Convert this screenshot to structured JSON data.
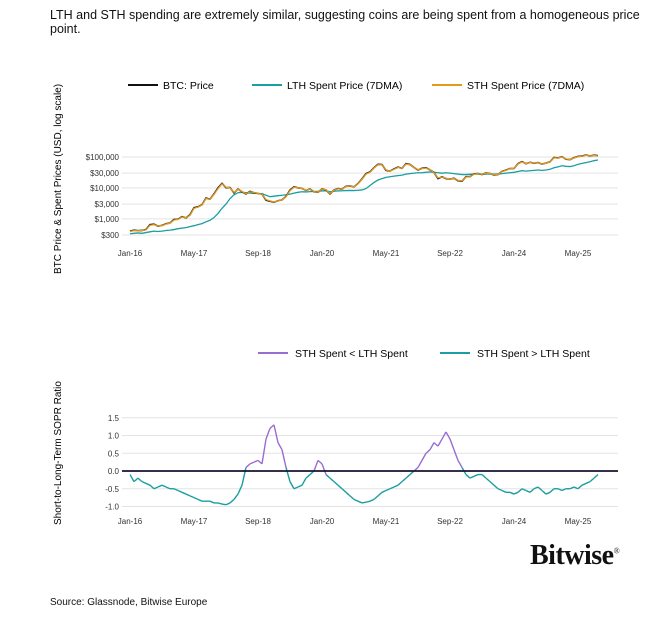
{
  "title": "LTH and STH spending are extremely similar, suggesting coins are being spent from a homogeneous price point.",
  "source": "Source: Glassnode, Bitwise Europe",
  "logo": "Bitwise",
  "colors": {
    "price": "#111111",
    "lth": "#1a9ea0",
    "sth": "#e49a1c",
    "purple": "#9a6bd2",
    "zero": "#1a1030"
  },
  "chart_data": [
    {
      "type": "line",
      "ylabel": "BTC Price & Spent Prices (USD, log scale)",
      "yscale": "log",
      "ylim": [
        250,
        130000
      ],
      "yticks": [
        300,
        1000,
        3000,
        10000,
        30000,
        100000
      ],
      "ytick_labels": [
        "$300",
        "$1,000",
        "$3,000",
        "$10,000",
        "$30,000",
        "$100,000"
      ],
      "xticks": [
        "Jan-16",
        "May-17",
        "Sep-18",
        "Jan-20",
        "May-21",
        "Sep-22",
        "Jan-24",
        "May-25"
      ],
      "grid": true,
      "legend": "top",
      "x_start": "2016-01",
      "x_step": "monthly",
      "series": [
        {
          "name": "BTC: Price",
          "values": [
            400,
            430,
            415,
            420,
            450,
            650,
            670,
            580,
            610,
            690,
            730,
            960,
            970,
            1180,
            1070,
            1350,
            2300,
            2450,
            2850,
            4700,
            4300,
            6400,
            10000,
            14000,
            10200,
            10300,
            6900,
            9200,
            7500,
            6400,
            7700,
            7000,
            6600,
            6300,
            4000,
            3700,
            3450,
            3850,
            4100,
            5300,
            8500,
            10800,
            10100,
            9600,
            8300,
            9200,
            7500,
            7200,
            9300,
            8600,
            6400,
            8600,
            9500,
            9100,
            11300,
            11600,
            10800,
            13800,
            19600,
            29000,
            33000,
            45000,
            58000,
            57000,
            37000,
            35000,
            41000,
            47000,
            43000,
            61000,
            57000,
            46000,
            38000,
            43000,
            45000,
            38000,
            31500,
            20000,
            23000,
            20000,
            19400,
            20500,
            17100,
            16500,
            23100,
            23100,
            28500,
            29200,
            27200,
            30500,
            29200,
            26000,
            27000,
            34500,
            37700,
            42300,
            42500,
            61000,
            71000,
            60600,
            67500,
            62700,
            66000,
            59000,
            63300,
            70200,
            96400,
            93400,
            102000,
            84400,
            82500,
            94200,
            104600,
            107100,
            115800,
            108200,
            114000,
            110000
          ]
        },
        {
          "name": "LTH Spent Price (7DMA)",
          "values": [
            330,
            340,
            350,
            340,
            360,
            380,
            400,
            390,
            400,
            420,
            430,
            450,
            480,
            500,
            520,
            560,
            600,
            650,
            700,
            800,
            900,
            1100,
            1500,
            2200,
            3000,
            4500,
            6000,
            7000,
            7200,
            7000,
            6800,
            6700,
            6600,
            6500,
            5800,
            5200,
            5400,
            5600,
            5800,
            6000,
            6300,
            6800,
            7200,
            7500,
            7400,
            7600,
            7700,
            7800,
            8000,
            8100,
            7500,
            7800,
            8000,
            8100,
            8200,
            8300,
            8200,
            8400,
            8600,
            9500,
            12000,
            15000,
            18000,
            20000,
            22000,
            23000,
            24000,
            25000,
            26000,
            28000,
            29000,
            30000,
            31000,
            31000,
            32000,
            33000,
            32000,
            31000,
            30000,
            31000,
            30000,
            29000,
            28000,
            27000,
            27000,
            27500,
            28000,
            28000,
            27500,
            28000,
            28500,
            28000,
            28000,
            29000,
            30000,
            31000,
            32000,
            34000,
            36000,
            35000,
            36000,
            37000,
            38000,
            37000,
            38000,
            40000,
            45000,
            48000,
            52000,
            50000,
            49000,
            52000,
            58000,
            62000,
            66000,
            70000,
            76000,
            80000
          ]
        },
        {
          "name": "STH Spent Price (7DMA)",
          "values": [
            390,
            420,
            410,
            420,
            440,
            620,
            650,
            590,
            600,
            680,
            720,
            920,
            950,
            1150,
            1080,
            1300,
            2200,
            2400,
            2800,
            4500,
            4300,
            6200,
            9500,
            13500,
            10500,
            10000,
            7200,
            9000,
            7600,
            6500,
            7500,
            7100,
            6600,
            6300,
            4200,
            3800,
            3500,
            3800,
            4100,
            5200,
            8200,
            10500,
            10100,
            9500,
            8400,
            9100,
            7600,
            7300,
            9200,
            8700,
            6600,
            8500,
            9400,
            9100,
            11100,
            11500,
            10800,
            13500,
            19000,
            28000,
            32000,
            44000,
            56000,
            56000,
            38000,
            35000,
            40000,
            46000,
            43000,
            59000,
            56000,
            46000,
            39000,
            42000,
            44000,
            38000,
            31000,
            21000,
            22500,
            20500,
            19500,
            20300,
            17500,
            17000,
            22500,
            23000,
            28000,
            29000,
            27500,
            30000,
            29300,
            26500,
            27000,
            34000,
            37000,
            42000,
            43000,
            60000,
            69000,
            61000,
            67000,
            63000,
            65500,
            59500,
            63000,
            70000,
            94000,
            93000,
            100000,
            86000,
            83000,
            93000,
            103000,
            106000,
            114000,
            109000,
            113000,
            108000
          ]
        }
      ]
    },
    {
      "type": "line",
      "ylabel": "Short-to-Long-Term SOPR Ratio",
      "ylim": [
        -1.1,
        1.6
      ],
      "yticks": [
        1.5,
        1.0,
        0.5,
        0.0,
        -0.5,
        -1.0
      ],
      "ytick_labels": [
        "1.5",
        "1.0",
        "0.5",
        "0.0",
        "-0.5",
        "-1.0"
      ],
      "xticks": [
        "Jan-16",
        "May-17",
        "Sep-18",
        "Jan-20",
        "May-21",
        "Sep-22",
        "Jan-24",
        "May-25"
      ],
      "grid": true,
      "legend": "top",
      "x_start": "2016-01",
      "x_step": "monthly",
      "series_labels": [
        "STH Spent < LTH Spent",
        "STH Spent > LTH Spent"
      ],
      "values": [
        -0.1,
        -0.3,
        -0.2,
        -0.3,
        -0.35,
        -0.4,
        -0.5,
        -0.45,
        -0.4,
        -0.45,
        -0.5,
        -0.5,
        -0.55,
        -0.6,
        -0.65,
        -0.7,
        -0.75,
        -0.8,
        -0.85,
        -0.85,
        -0.85,
        -0.9,
        -0.9,
        -0.93,
        -0.95,
        -0.9,
        -0.8,
        -0.65,
        -0.4,
        0.1,
        0.2,
        0.25,
        0.3,
        0.2,
        0.9,
        1.2,
        1.3,
        0.8,
        0.6,
        0.1,
        -0.3,
        -0.5,
        -0.45,
        -0.4,
        -0.2,
        -0.1,
        0.0,
        0.3,
        0.2,
        -0.1,
        -0.2,
        -0.3,
        -0.4,
        -0.5,
        -0.6,
        -0.7,
        -0.8,
        -0.85,
        -0.9,
        -0.88,
        -0.85,
        -0.8,
        -0.7,
        -0.6,
        -0.55,
        -0.5,
        -0.45,
        -0.4,
        -0.3,
        -0.2,
        -0.1,
        0.0,
        0.1,
        0.3,
        0.5,
        0.6,
        0.8,
        0.7,
        0.9,
        1.1,
        0.9,
        0.6,
        0.3,
        0.1,
        -0.1,
        -0.2,
        -0.15,
        -0.1,
        -0.1,
        -0.2,
        -0.3,
        -0.4,
        -0.5,
        -0.55,
        -0.6,
        -0.6,
        -0.65,
        -0.6,
        -0.5,
        -0.55,
        -0.6,
        -0.5,
        -0.45,
        -0.55,
        -0.65,
        -0.6,
        -0.5,
        -0.5,
        -0.55,
        -0.5,
        -0.5,
        -0.45,
        -0.5,
        -0.4,
        -0.35,
        -0.3,
        -0.2,
        -0.1
      ]
    }
  ]
}
